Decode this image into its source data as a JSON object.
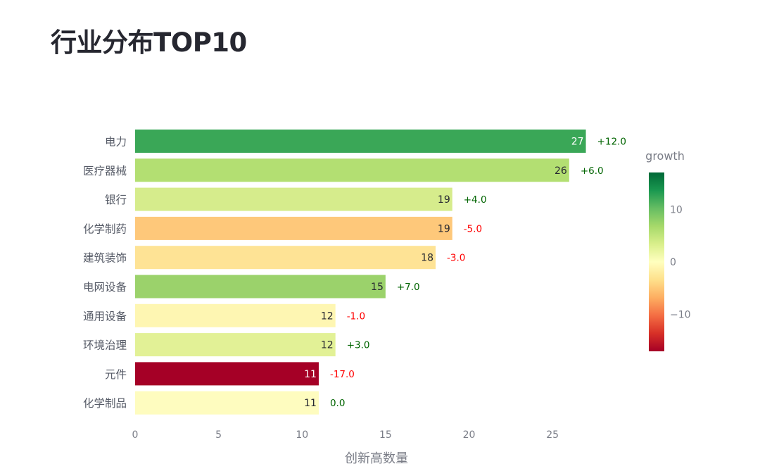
{
  "title": "行业分布TOP10",
  "chart_data": {
    "type": "bar",
    "orientation": "horizontal",
    "categories": [
      "电力",
      "医疗器械",
      "银行",
      "化学制药",
      "建筑装饰",
      "电网设备",
      "通用设备",
      "环境治理",
      "元件",
      "化学制品"
    ],
    "series": [
      {
        "values": [
          27,
          26,
          19,
          19,
          18,
          15,
          12,
          12,
          11,
          11
        ]
      }
    ],
    "growth": [
      12.0,
      6.0,
      4.0,
      -5.0,
      -3.0,
      7.0,
      -1.0,
      3.0,
      -17.0,
      0.0
    ],
    "growth_labels": [
      "+12.0",
      "+6.0",
      "+4.0",
      "-5.0",
      "-3.0",
      "+7.0",
      "-1.0",
      "+3.0",
      "-17.0",
      "0.0"
    ],
    "bar_colors": [
      "#3aa757",
      "#b3df72",
      "#d6ec8c",
      "#fec87a",
      "#fee395",
      "#9bd26b",
      "#fef6b2",
      "#e2f196",
      "#a50026",
      "#fefcbf"
    ],
    "bar_label_colors": [
      "#ffffff",
      "#262730",
      "#262730",
      "#262730",
      "#262730",
      "#262730",
      "#262730",
      "#262730",
      "#ffffff",
      "#262730"
    ],
    "xlabel": "创新高数量",
    "ylabel": "",
    "xlim": [
      0,
      29
    ],
    "xticks": [
      0,
      5,
      10,
      15,
      20,
      25
    ],
    "grid": false,
    "positive_color": "#006400",
    "negative_color": "#ff0000",
    "colorbar": {
      "title": "growth",
      "range": [
        -17,
        17
      ],
      "ticks": [
        10,
        0,
        -10
      ],
      "tick_labels": [
        "10",
        "0",
        "−10"
      ],
      "colors": [
        "#a50026",
        "#d73027",
        "#f46d43",
        "#fdae61",
        "#fee08b",
        "#ffffbf",
        "#d9ef8b",
        "#a6d96a",
        "#66bd63",
        "#1a9850",
        "#006837"
      ]
    }
  }
}
